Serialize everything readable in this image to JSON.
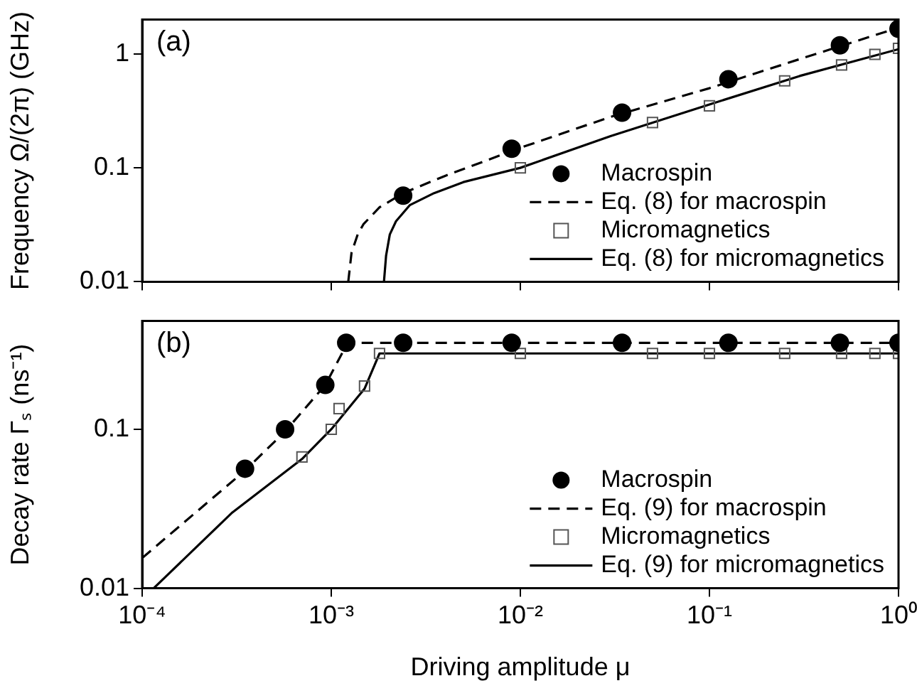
{
  "chart_data": [
    {
      "type": "scatter",
      "ylabel": "Frequency Ω/(2π) (GHz)",
      "annotations": [
        "(a)"
      ],
      "log": "xy",
      "grid": false,
      "legend": "bottom right",
      "tick_labels": "y",
      "xlim": [
        0.0001,
        1
      ],
      "xticks": [
        {
          "value": 0.0001,
          "label": null
        },
        {
          "value": 0.001,
          "label": null
        },
        {
          "value": 0.01,
          "label": null
        },
        {
          "value": 0.1,
          "label": null
        },
        {
          "value": 1,
          "label": null
        }
      ],
      "ylim": [
        0.01,
        2
      ],
      "yticks": [
        0.01,
        0.1,
        1
      ],
      "series": [
        {
          "name": "Macrospin",
          "type": "scatter",
          "marker": "circle",
          "color": "#000000",
          "x": [
            0.0024,
            0.009,
            0.0345,
            0.126,
            0.49,
            1
          ],
          "values": [
            0.057,
            0.147,
            0.305,
            0.6,
            1.19,
            1.66
          ]
        },
        {
          "name": "Eq. (8) for macrospin",
          "type": "line",
          "marker": "none",
          "line_style": "dashed",
          "color": "#000000",
          "x": [
            0.00123,
            0.00128,
            0.00138,
            0.00148,
            0.0018,
            0.0024,
            0.004,
            0.01,
            0.03,
            0.1,
            0.3,
            1
          ],
          "values": [
            0.01,
            0.018,
            0.026,
            0.032,
            0.045,
            0.06,
            0.085,
            0.15,
            0.28,
            0.5,
            0.9,
            1.7
          ]
        },
        {
          "name": "Micromagnetics",
          "type": "scatter",
          "marker": "square",
          "color": "#555555",
          "x": [
            0.01,
            0.05,
            0.1,
            0.25,
            0.5,
            0.75,
            1
          ],
          "values": [
            0.1,
            0.25,
            0.35,
            0.58,
            0.8,
            0.99,
            1.12
          ]
        },
        {
          "name": "Eq. (8) for micromagnetics",
          "type": "line",
          "marker": "none",
          "line_style": "solid",
          "color": "#000000",
          "x": [
            0.0019,
            0.00195,
            0.00204,
            0.0022,
            0.0026,
            0.0035,
            0.005,
            0.01,
            0.03,
            0.1,
            0.3,
            1
          ],
          "values": [
            0.01,
            0.017,
            0.026,
            0.034,
            0.047,
            0.06,
            0.075,
            0.1,
            0.19,
            0.36,
            0.64,
            1.1
          ]
        }
      ]
    },
    {
      "type": "scatter",
      "xlabel": "Driving amplitude μ",
      "ylabel": "Decay rate Γₛ (ns⁻¹)",
      "annotations": [
        "(b)"
      ],
      "log": "xy",
      "grid": false,
      "legend": "bottom right",
      "xlim": [
        0.0001,
        1
      ],
      "xticks": [
        {
          "value": 0.0001,
          "label": "10⁻⁴"
        },
        {
          "value": 0.001,
          "label": "10⁻³"
        },
        {
          "value": 0.01,
          "label": "10⁻²"
        },
        {
          "value": 0.1,
          "label": "10⁻¹"
        },
        {
          "value": 1,
          "label": "10⁰"
        }
      ],
      "ylim": [
        0.01,
        0.48
      ],
      "yticks": [
        0.01,
        0.1
      ],
      "series": [
        {
          "name": "Macrospin",
          "type": "scatter",
          "marker": "circle",
          "color": "#000000",
          "x": [
            0.00035,
            0.00057,
            0.00093,
            0.0012,
            0.0024,
            0.009,
            0.0345,
            0.126,
            0.49,
            1
          ],
          "values": [
            0.0565,
            0.1,
            0.19,
            0.35,
            0.35,
            0.35,
            0.35,
            0.35,
            0.35,
            0.35
          ]
        },
        {
          "name": "Eq. (9) for macrospin",
          "type": "line",
          "marker": "none",
          "line_style": "dashed",
          "color": "#000000",
          "x": [
            0.0001,
            0.00035,
            0.00057,
            0.00093,
            0.00122,
            1
          ],
          "values": [
            0.0155,
            0.055,
            0.097,
            0.19,
            0.35,
            0.35
          ]
        },
        {
          "name": "Micromagnetics",
          "type": "scatter",
          "marker": "square",
          "color": "#555555",
          "x": [
            0.0007,
            0.001,
            0.0011,
            0.0015,
            0.0018,
            0.01,
            0.05,
            0.1,
            0.25,
            0.5,
            0.75,
            1
          ],
          "values": [
            0.067,
            0.1,
            0.135,
            0.187,
            0.3,
            0.3,
            0.3,
            0.3,
            0.3,
            0.3,
            0.3,
            0.3
          ]
        },
        {
          "name": "Eq. (9) for micromagnetics",
          "type": "line",
          "marker": "none",
          "line_style": "solid",
          "color": "#000000",
          "x": [
            0.000115,
            0.0003,
            0.0007,
            0.001,
            0.0015,
            0.0018,
            1
          ],
          "values": [
            0.01,
            0.03,
            0.065,
            0.1,
            0.18,
            0.3,
            0.3
          ]
        }
      ]
    }
  ]
}
